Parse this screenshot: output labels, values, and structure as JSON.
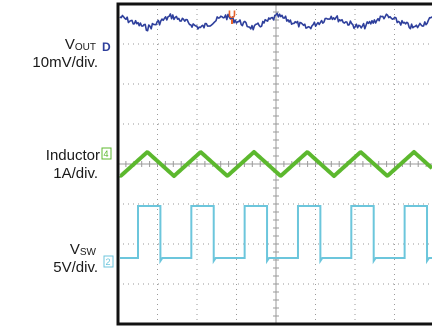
{
  "labels": {
    "vout_base": "V",
    "vout_sub": "OUT",
    "vout_scale": "10mV/div.",
    "inductor_name": "Inductor",
    "inductor_scale": "1A/div.",
    "vsw_base": "V",
    "vsw_sub": "SW",
    "vsw_scale": "5V/div."
  },
  "markers": {
    "trigger": "U",
    "vout_channel": "D",
    "inductor_channel": "4",
    "vsw_channel": "2"
  },
  "colors": {
    "vout": "#2e3f9c",
    "inductor": "#5cb82e",
    "vsw": "#6cc6dc",
    "trigger": "#e8632a",
    "grid": "#9a9a9a",
    "frame": "#111111"
  },
  "chart_data": {
    "type": "line",
    "grid": true,
    "divisions": {
      "x": 8,
      "y": 8
    },
    "series": [
      {
        "name": "VOUT",
        "scale": "10mV/div.",
        "shape": "noisy ripple",
        "period_div": 1.35,
        "amplitude_div": 0.25
      },
      {
        "name": "Inductor",
        "scale": "1A/div.",
        "shape": "triangle",
        "period_div": 1.35,
        "amplitude_div": 0.6
      },
      {
        "name": "VSW",
        "scale": "5V/div.",
        "shape": "square",
        "period_div": 1.35,
        "high_div": 1.3
      }
    ]
  }
}
